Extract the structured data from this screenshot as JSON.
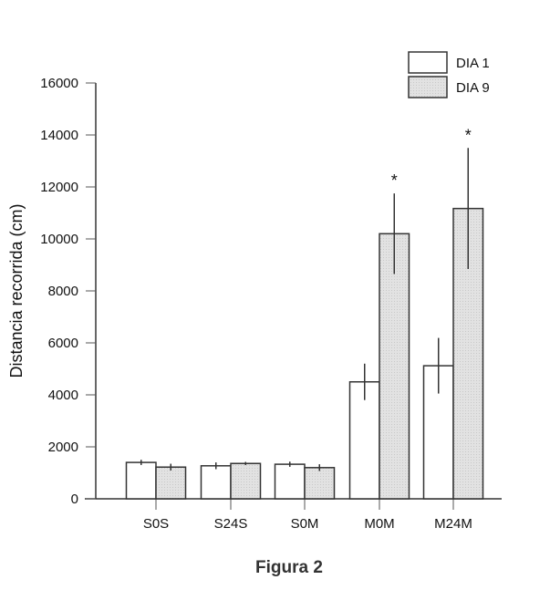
{
  "chart_data": {
    "type": "bar",
    "title": "",
    "caption": "Figura 2",
    "xlabel": "",
    "ylabel": "Distancia recorrida (cm)",
    "ylim": [
      0,
      16000
    ],
    "yticks": [
      0,
      2000,
      4000,
      6000,
      8000,
      10000,
      12000,
      14000,
      16000
    ],
    "categories": [
      "S0S",
      "S24S",
      "S0M",
      "M0M",
      "M24M"
    ],
    "series": [
      {
        "name": "DIA 1",
        "color": "#ffffff",
        "values": [
          1400,
          1270,
          1330,
          4500,
          5120
        ],
        "errors": [
          100,
          130,
          100,
          700,
          1070
        ]
      },
      {
        "name": "DIA 9",
        "color": "#e0e0e0",
        "values": [
          1220,
          1360,
          1200,
          10200,
          11170
        ],
        "errors": [
          130,
          60,
          130,
          1550,
          2330
        ]
      }
    ],
    "annotations": [
      {
        "category": "M0M",
        "series": "DIA 9",
        "text": "*"
      },
      {
        "category": "M24M",
        "series": "DIA 9",
        "text": "*"
      }
    ],
    "legend_position": "top-right",
    "grid": false
  }
}
